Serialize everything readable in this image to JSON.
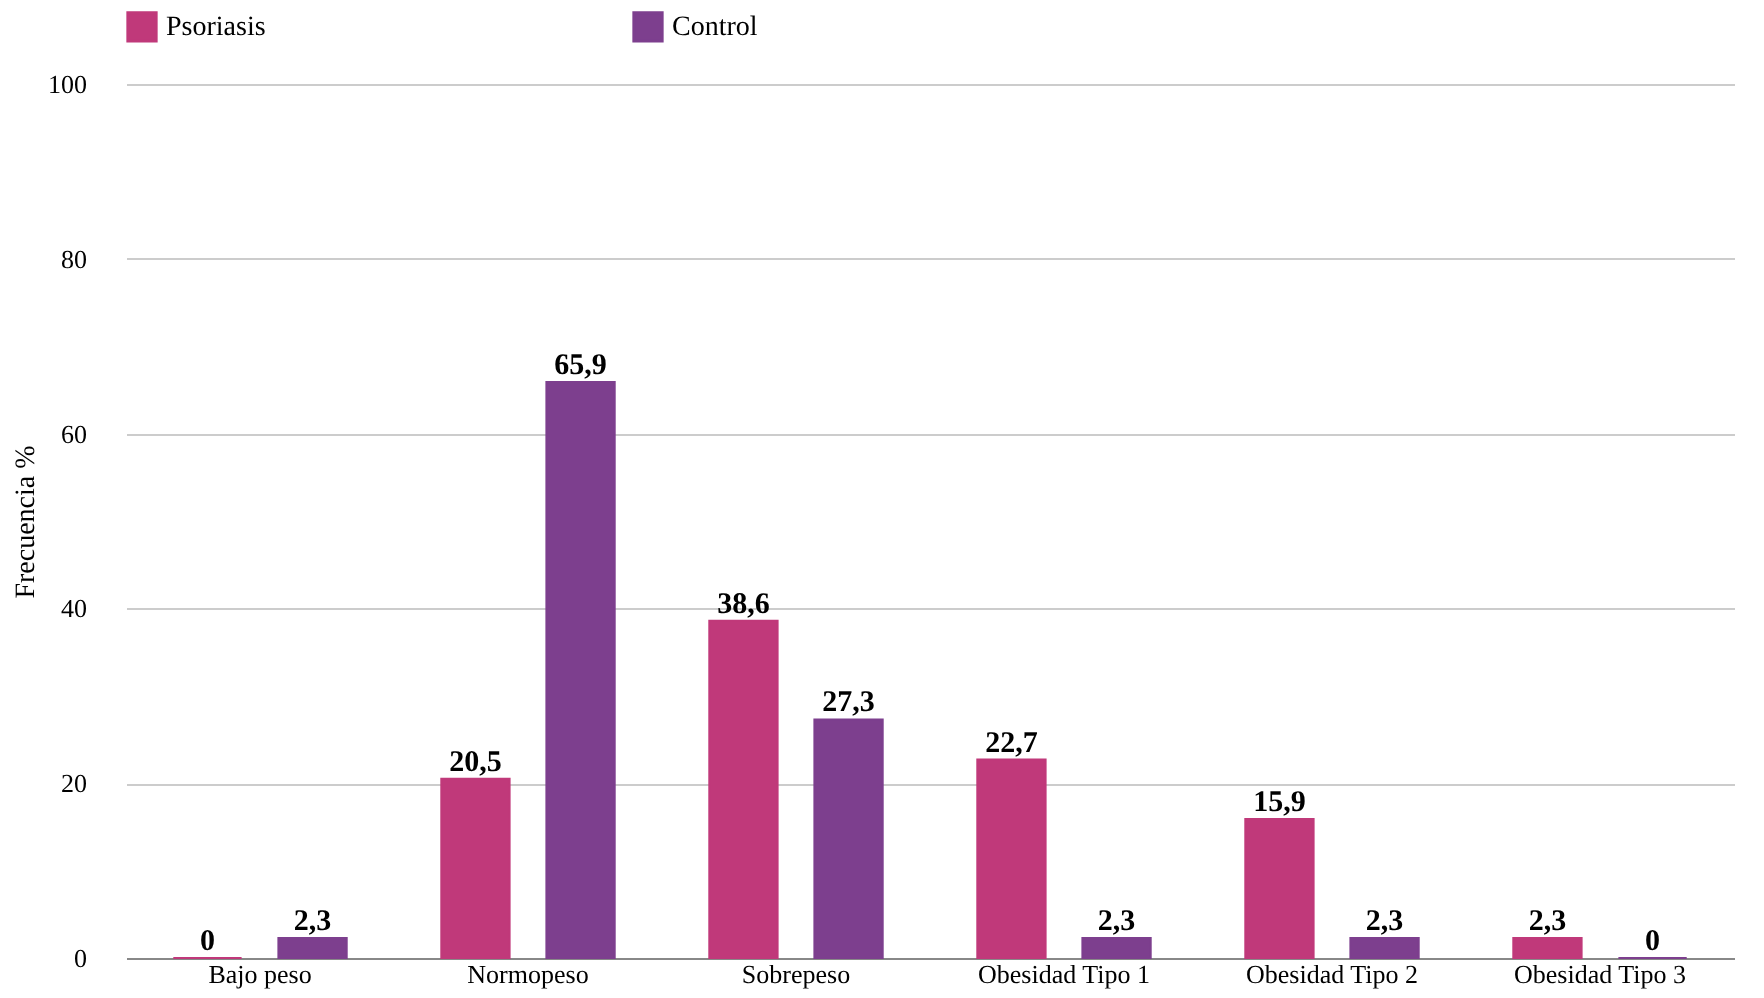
{
  "chart_data": {
    "type": "bar",
    "ylabel": "Frecuencia %",
    "categories": [
      "Bajo peso",
      "Normopeso",
      "Sobrepeso",
      "Obesidad Tipo 1",
      "Obesidad Tipo 2",
      "Obesidad Tipo 3"
    ],
    "series": [
      {
        "name": "Psoriasis",
        "color": "#c0397a",
        "values": [
          0,
          20.5,
          38.6,
          22.7,
          15.9,
          2.3
        ],
        "value_labels": [
          "0",
          "20,5",
          "38,6",
          "22,7",
          "15,9",
          "2,3"
        ]
      },
      {
        "name": "Control",
        "color": "#7d3f8e",
        "values": [
          2.3,
          65.9,
          27.3,
          2.3,
          2.3,
          0
        ],
        "value_labels": [
          "2,3",
          "65,9",
          "27,3",
          "2,3",
          "2,3",
          "0"
        ]
      }
    ],
    "ylim": [
      0,
      100
    ],
    "yticks": [
      0,
      20,
      40,
      60,
      80,
      100
    ],
    "grid": "y",
    "legend": "top"
  }
}
